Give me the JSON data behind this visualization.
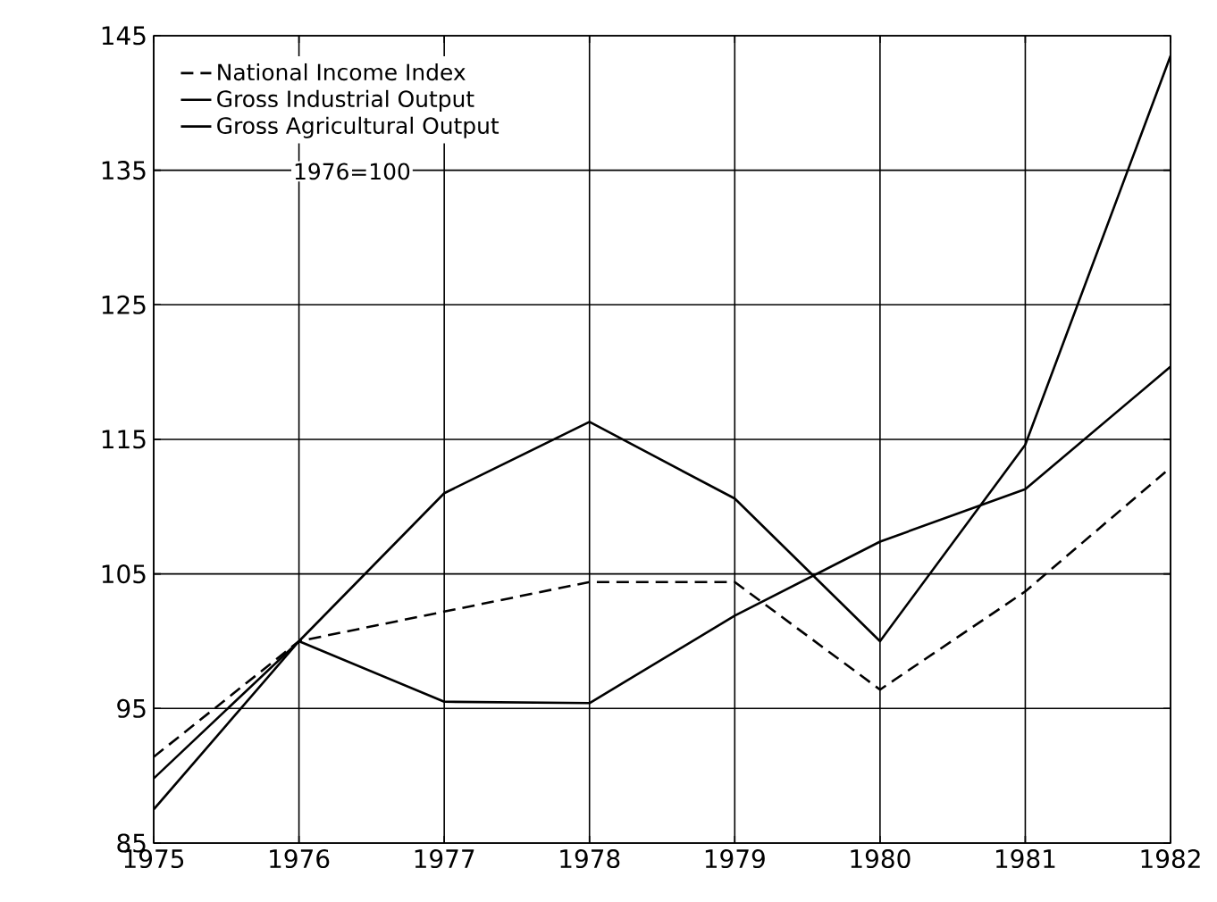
{
  "chart_data": {
    "type": "line",
    "x": [
      1975,
      1976,
      1977,
      1978,
      1979,
      1980,
      1981,
      1982
    ],
    "series": [
      {
        "name": "National Income Index",
        "color": "#000000",
        "line_style": "dashed",
        "values": [
          91.4,
          100,
          102.2,
          104.4,
          104.4,
          96.4,
          103.7,
          112.9
        ]
      },
      {
        "name": "Gross Industrial Output",
        "color": "#000000",
        "line_style": "solid",
        "values": [
          87.5,
          100,
          111,
          116.3,
          110.6,
          100,
          114.6,
          143.5
        ]
      },
      {
        "name": "Gross Agricultural Output",
        "color": "#000000",
        "line_style": "solid",
        "values": [
          89.8,
          100,
          95.5,
          95.4,
          101.9,
          107.4,
          111.3,
          120.4
        ]
      }
    ],
    "annotations": [
      "1976=100"
    ],
    "xlim": [
      1975,
      1982
    ],
    "xticks": [
      1975,
      1976,
      1977,
      1978,
      1979,
      1980,
      1981,
      1982
    ],
    "ylim": [
      85,
      145
    ],
    "yticks": [
      85,
      95,
      105,
      115,
      125,
      135,
      145
    ],
    "grid": true,
    "legend": "top left",
    "marker": "none"
  }
}
